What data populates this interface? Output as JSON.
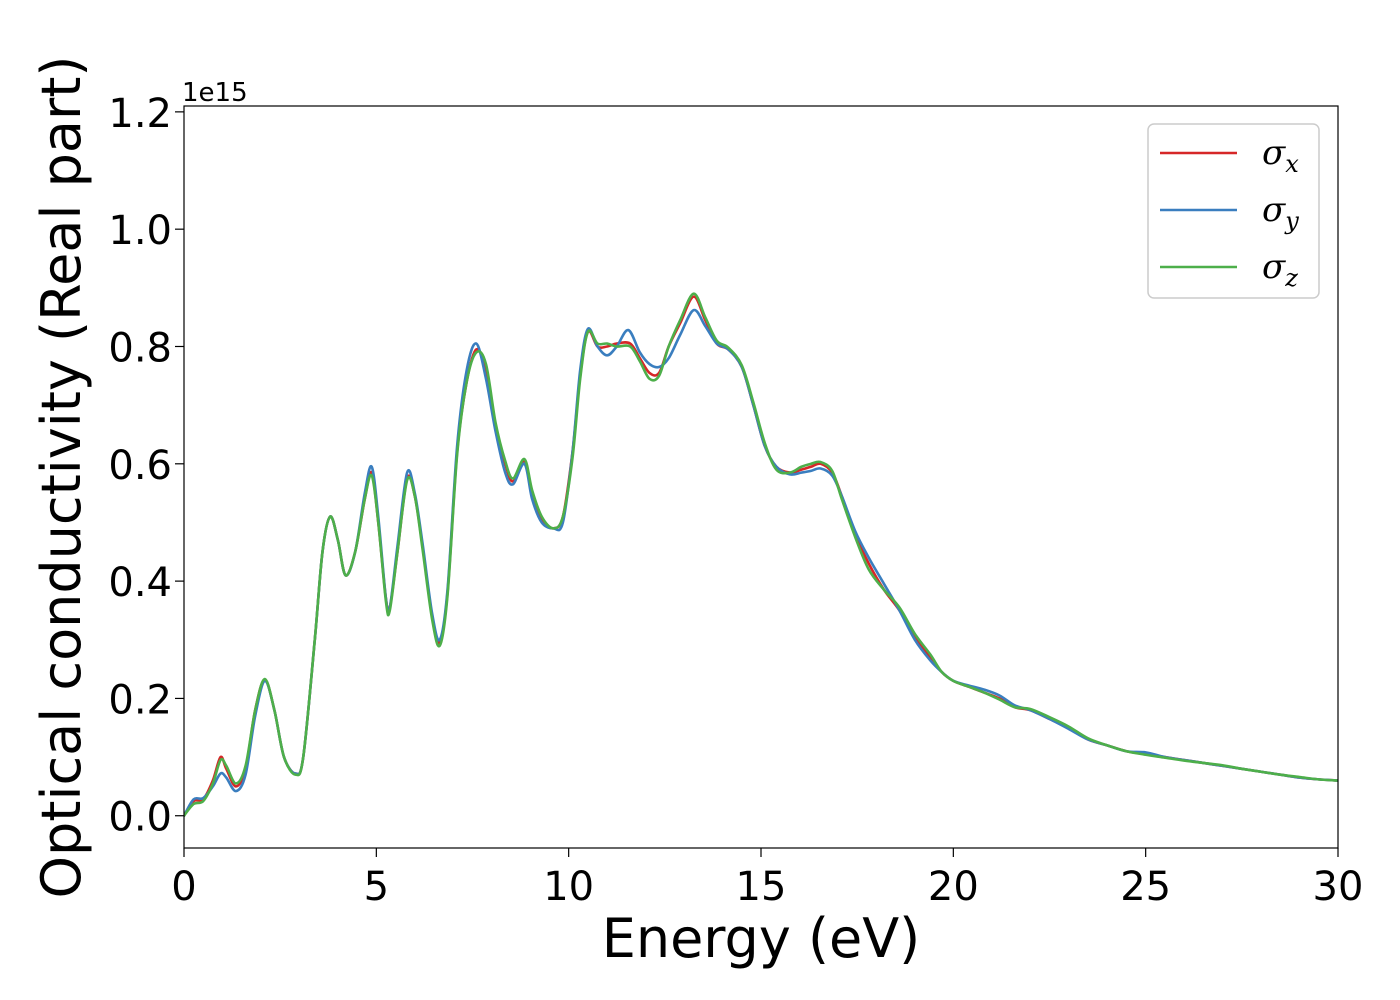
{
  "chart_data": {
    "type": "line",
    "xlabel": "Energy (eV)",
    "ylabel": "Optical conductivity (Real part)",
    "y_offset_label": "1e15",
    "xlim": [
      0,
      30
    ],
    "ylim": [
      -0.055,
      1.21
    ],
    "x_ticks": [
      0,
      5,
      10,
      15,
      20,
      25,
      30
    ],
    "x_tick_labels": [
      "0",
      "5",
      "10",
      "15",
      "20",
      "25",
      "30"
    ],
    "y_ticks": [
      0.0,
      0.2,
      0.4,
      0.6,
      0.8,
      1.0,
      1.2
    ],
    "y_tick_labels": [
      "0.0",
      "0.2",
      "0.4",
      "0.6",
      "0.8",
      "1.0",
      "1.2"
    ],
    "grid": false,
    "legend_position": "top-right",
    "series": [
      {
        "name": "σx",
        "symbol": "σ",
        "subscript": "x",
        "color": "#d62728",
        "points": [
          [
            0,
            0.0
          ],
          [
            0.25,
            0.025
          ],
          [
            0.5,
            0.028
          ],
          [
            0.75,
            0.06
          ],
          [
            0.95,
            0.1
          ],
          [
            1.1,
            0.08
          ],
          [
            1.35,
            0.05
          ],
          [
            1.6,
            0.08
          ],
          [
            1.85,
            0.18
          ],
          [
            2.1,
            0.232
          ],
          [
            2.35,
            0.18
          ],
          [
            2.6,
            0.1
          ],
          [
            2.9,
            0.072
          ],
          [
            3.1,
            0.1
          ],
          [
            3.4,
            0.3
          ],
          [
            3.6,
            0.45
          ],
          [
            3.8,
            0.51
          ],
          [
            4.0,
            0.47
          ],
          [
            4.2,
            0.41
          ],
          [
            4.45,
            0.45
          ],
          [
            4.7,
            0.54
          ],
          [
            4.88,
            0.585
          ],
          [
            5.05,
            0.5
          ],
          [
            5.25,
            0.37
          ],
          [
            5.35,
            0.355
          ],
          [
            5.55,
            0.45
          ],
          [
            5.8,
            0.575
          ],
          [
            6.0,
            0.545
          ],
          [
            6.2,
            0.46
          ],
          [
            6.45,
            0.34
          ],
          [
            6.65,
            0.295
          ],
          [
            6.85,
            0.38
          ],
          [
            7.1,
            0.62
          ],
          [
            7.35,
            0.74
          ],
          [
            7.6,
            0.795
          ],
          [
            7.85,
            0.76
          ],
          [
            8.1,
            0.66
          ],
          [
            8.35,
            0.6
          ],
          [
            8.55,
            0.57
          ],
          [
            8.85,
            0.605
          ],
          [
            9.05,
            0.55
          ],
          [
            9.3,
            0.505
          ],
          [
            9.6,
            0.49
          ],
          [
            9.85,
            0.51
          ],
          [
            10.1,
            0.62
          ],
          [
            10.3,
            0.75
          ],
          [
            10.5,
            0.825
          ],
          [
            10.75,
            0.8
          ],
          [
            11.0,
            0.8
          ],
          [
            11.25,
            0.805
          ],
          [
            11.6,
            0.805
          ],
          [
            11.85,
            0.78
          ],
          [
            12.1,
            0.755
          ],
          [
            12.35,
            0.755
          ],
          [
            12.6,
            0.8
          ],
          [
            12.9,
            0.84
          ],
          [
            13.25,
            0.885
          ],
          [
            13.55,
            0.845
          ],
          [
            13.85,
            0.805
          ],
          [
            14.15,
            0.795
          ],
          [
            14.5,
            0.765
          ],
          [
            14.8,
            0.7
          ],
          [
            15.1,
            0.63
          ],
          [
            15.4,
            0.595
          ],
          [
            15.75,
            0.585
          ],
          [
            16.05,
            0.59
          ],
          [
            16.3,
            0.595
          ],
          [
            16.55,
            0.6
          ],
          [
            16.85,
            0.585
          ],
          [
            17.1,
            0.545
          ],
          [
            17.45,
            0.48
          ],
          [
            17.8,
            0.43
          ],
          [
            18.2,
            0.385
          ],
          [
            18.6,
            0.35
          ],
          [
            19.0,
            0.305
          ],
          [
            19.4,
            0.27
          ],
          [
            19.7,
            0.245
          ],
          [
            20.0,
            0.23
          ],
          [
            20.4,
            0.22
          ],
          [
            20.8,
            0.21
          ],
          [
            21.2,
            0.2
          ],
          [
            21.6,
            0.185
          ],
          [
            22.0,
            0.18
          ],
          [
            22.5,
            0.165
          ],
          [
            23.0,
            0.15
          ],
          [
            23.5,
            0.13
          ],
          [
            24.0,
            0.12
          ],
          [
            24.5,
            0.11
          ],
          [
            25.0,
            0.105
          ],
          [
            25.5,
            0.1
          ],
          [
            26.0,
            0.095
          ],
          [
            26.5,
            0.09
          ],
          [
            27.0,
            0.085
          ],
          [
            27.5,
            0.08
          ],
          [
            28.0,
            0.075
          ],
          [
            28.5,
            0.07
          ],
          [
            29.0,
            0.065
          ],
          [
            29.5,
            0.062
          ],
          [
            30.0,
            0.06
          ]
        ]
      },
      {
        "name": "σy",
        "symbol": "σ",
        "subscript": "y",
        "color": "#3a7ebf",
        "points": [
          [
            0,
            0.0
          ],
          [
            0.25,
            0.028
          ],
          [
            0.5,
            0.03
          ],
          [
            0.75,
            0.05
          ],
          [
            0.95,
            0.072
          ],
          [
            1.1,
            0.065
          ],
          [
            1.35,
            0.042
          ],
          [
            1.6,
            0.07
          ],
          [
            1.85,
            0.17
          ],
          [
            2.1,
            0.23
          ],
          [
            2.35,
            0.18
          ],
          [
            2.6,
            0.1
          ],
          [
            2.9,
            0.072
          ],
          [
            3.1,
            0.1
          ],
          [
            3.4,
            0.3
          ],
          [
            3.6,
            0.45
          ],
          [
            3.8,
            0.51
          ],
          [
            4.0,
            0.47
          ],
          [
            4.2,
            0.41
          ],
          [
            4.45,
            0.45
          ],
          [
            4.7,
            0.55
          ],
          [
            4.88,
            0.595
          ],
          [
            5.05,
            0.51
          ],
          [
            5.25,
            0.37
          ],
          [
            5.35,
            0.355
          ],
          [
            5.55,
            0.46
          ],
          [
            5.8,
            0.585
          ],
          [
            6.0,
            0.55
          ],
          [
            6.2,
            0.465
          ],
          [
            6.45,
            0.345
          ],
          [
            6.65,
            0.3
          ],
          [
            6.85,
            0.385
          ],
          [
            7.1,
            0.63
          ],
          [
            7.35,
            0.76
          ],
          [
            7.6,
            0.805
          ],
          [
            7.85,
            0.745
          ],
          [
            8.1,
            0.655
          ],
          [
            8.35,
            0.585
          ],
          [
            8.55,
            0.565
          ],
          [
            8.85,
            0.6
          ],
          [
            9.05,
            0.54
          ],
          [
            9.3,
            0.5
          ],
          [
            9.6,
            0.49
          ],
          [
            9.85,
            0.5
          ],
          [
            10.1,
            0.62
          ],
          [
            10.3,
            0.76
          ],
          [
            10.5,
            0.83
          ],
          [
            10.75,
            0.8
          ],
          [
            11.0,
            0.785
          ],
          [
            11.25,
            0.8
          ],
          [
            11.55,
            0.828
          ],
          [
            11.85,
            0.79
          ],
          [
            12.1,
            0.77
          ],
          [
            12.35,
            0.765
          ],
          [
            12.6,
            0.78
          ],
          [
            12.9,
            0.82
          ],
          [
            13.25,
            0.862
          ],
          [
            13.55,
            0.835
          ],
          [
            13.85,
            0.805
          ],
          [
            14.15,
            0.795
          ],
          [
            14.5,
            0.765
          ],
          [
            14.8,
            0.7
          ],
          [
            15.1,
            0.63
          ],
          [
            15.4,
            0.595
          ],
          [
            15.75,
            0.582
          ],
          [
            16.05,
            0.585
          ],
          [
            16.3,
            0.588
          ],
          [
            16.55,
            0.592
          ],
          [
            16.85,
            0.58
          ],
          [
            17.1,
            0.545
          ],
          [
            17.45,
            0.485
          ],
          [
            17.8,
            0.44
          ],
          [
            18.2,
            0.395
          ],
          [
            18.6,
            0.35
          ],
          [
            19.0,
            0.3
          ],
          [
            19.4,
            0.265
          ],
          [
            19.7,
            0.245
          ],
          [
            20.0,
            0.23
          ],
          [
            20.4,
            0.222
          ],
          [
            20.8,
            0.215
          ],
          [
            21.2,
            0.205
          ],
          [
            21.6,
            0.188
          ],
          [
            22.0,
            0.18
          ],
          [
            22.5,
            0.165
          ],
          [
            23.0,
            0.148
          ],
          [
            23.5,
            0.13
          ],
          [
            24.0,
            0.12
          ],
          [
            24.5,
            0.11
          ],
          [
            25.0,
            0.108
          ],
          [
            25.5,
            0.1
          ],
          [
            26.0,
            0.095
          ],
          [
            26.5,
            0.09
          ],
          [
            27.0,
            0.085
          ],
          [
            27.5,
            0.08
          ],
          [
            28.0,
            0.075
          ],
          [
            28.5,
            0.07
          ],
          [
            29.0,
            0.065
          ],
          [
            29.5,
            0.062
          ],
          [
            30.0,
            0.06
          ]
        ]
      },
      {
        "name": "σz",
        "symbol": "σ",
        "subscript": "z",
        "color": "#4daf4a",
        "points": [
          [
            0,
            0.0
          ],
          [
            0.25,
            0.02
          ],
          [
            0.5,
            0.025
          ],
          [
            0.75,
            0.055
          ],
          [
            0.95,
            0.095
          ],
          [
            1.1,
            0.085
          ],
          [
            1.35,
            0.055
          ],
          [
            1.6,
            0.085
          ],
          [
            1.85,
            0.18
          ],
          [
            2.1,
            0.233
          ],
          [
            2.35,
            0.18
          ],
          [
            2.6,
            0.1
          ],
          [
            2.9,
            0.07
          ],
          [
            3.1,
            0.1
          ],
          [
            3.4,
            0.3
          ],
          [
            3.6,
            0.45
          ],
          [
            3.8,
            0.51
          ],
          [
            4.0,
            0.47
          ],
          [
            4.2,
            0.41
          ],
          [
            4.45,
            0.45
          ],
          [
            4.7,
            0.54
          ],
          [
            4.88,
            0.58
          ],
          [
            5.05,
            0.5
          ],
          [
            5.25,
            0.365
          ],
          [
            5.35,
            0.35
          ],
          [
            5.55,
            0.45
          ],
          [
            5.8,
            0.572
          ],
          [
            6.0,
            0.545
          ],
          [
            6.2,
            0.455
          ],
          [
            6.45,
            0.335
          ],
          [
            6.65,
            0.29
          ],
          [
            6.85,
            0.375
          ],
          [
            7.1,
            0.615
          ],
          [
            7.35,
            0.74
          ],
          [
            7.6,
            0.79
          ],
          [
            7.85,
            0.77
          ],
          [
            8.1,
            0.67
          ],
          [
            8.35,
            0.605
          ],
          [
            8.55,
            0.575
          ],
          [
            8.85,
            0.608
          ],
          [
            9.05,
            0.555
          ],
          [
            9.3,
            0.51
          ],
          [
            9.6,
            0.49
          ],
          [
            9.85,
            0.51
          ],
          [
            10.1,
            0.61
          ],
          [
            10.3,
            0.745
          ],
          [
            10.5,
            0.825
          ],
          [
            10.75,
            0.805
          ],
          [
            11.0,
            0.805
          ],
          [
            11.25,
            0.8
          ],
          [
            11.6,
            0.8
          ],
          [
            11.85,
            0.775
          ],
          [
            12.1,
            0.745
          ],
          [
            12.35,
            0.75
          ],
          [
            12.6,
            0.8
          ],
          [
            12.9,
            0.845
          ],
          [
            13.25,
            0.89
          ],
          [
            13.55,
            0.85
          ],
          [
            13.85,
            0.81
          ],
          [
            14.15,
            0.798
          ],
          [
            14.5,
            0.768
          ],
          [
            14.8,
            0.705
          ],
          [
            15.1,
            0.635
          ],
          [
            15.4,
            0.59
          ],
          [
            15.75,
            0.585
          ],
          [
            16.05,
            0.595
          ],
          [
            16.3,
            0.6
          ],
          [
            16.55,
            0.603
          ],
          [
            16.85,
            0.588
          ],
          [
            17.1,
            0.54
          ],
          [
            17.45,
            0.475
          ],
          [
            17.8,
            0.42
          ],
          [
            18.2,
            0.385
          ],
          [
            18.6,
            0.355
          ],
          [
            19.0,
            0.31
          ],
          [
            19.4,
            0.275
          ],
          [
            19.7,
            0.245
          ],
          [
            20.0,
            0.23
          ],
          [
            20.4,
            0.22
          ],
          [
            20.8,
            0.21
          ],
          [
            21.2,
            0.198
          ],
          [
            21.6,
            0.185
          ],
          [
            22.0,
            0.182
          ],
          [
            22.5,
            0.168
          ],
          [
            23.0,
            0.152
          ],
          [
            23.5,
            0.132
          ],
          [
            24.0,
            0.12
          ],
          [
            24.5,
            0.11
          ],
          [
            25.0,
            0.104
          ],
          [
            25.5,
            0.099
          ],
          [
            26.0,
            0.094
          ],
          [
            26.5,
            0.09
          ],
          [
            27.0,
            0.086
          ],
          [
            27.5,
            0.08
          ],
          [
            28.0,
            0.075
          ],
          [
            28.5,
            0.07
          ],
          [
            29.0,
            0.066
          ],
          [
            29.5,
            0.062
          ],
          [
            30.0,
            0.06
          ]
        ]
      }
    ]
  }
}
